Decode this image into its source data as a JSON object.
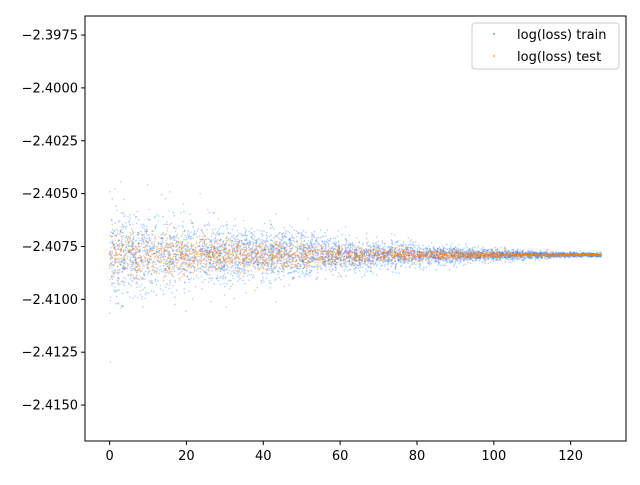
{
  "chart_data": {
    "type": "scatter",
    "title": "",
    "xlabel": "",
    "ylabel": "",
    "xlim": [
      -6.4,
      134.4
    ],
    "ylim": [
      -2.4167,
      -2.3966
    ],
    "xticks": [
      0,
      20,
      40,
      60,
      80,
      100,
      120
    ],
    "yticks": [
      -2.415,
      -2.4125,
      -2.41,
      -2.4075,
      -2.405,
      -2.4025,
      -2.4,
      -2.3975
    ],
    "ytick_labels": [
      "−2.4150",
      "−2.4125",
      "−2.4100",
      "−2.4075",
      "−2.4050",
      "−2.4025",
      "−2.4000",
      "−2.3975"
    ],
    "xtick_labels": [
      "0",
      "20",
      "40",
      "60",
      "80",
      "100",
      "120"
    ],
    "grid": false,
    "legend_position": "top-right",
    "series": [
      {
        "name": "log(loss) train",
        "color": "#1f77ff",
        "x_range": [
          0,
          128
        ],
        "center": -2.4079,
        "spread_start": 0.0011,
        "spread_end": 5e-05
      },
      {
        "name": "log(loss) test",
        "color": "#ff7f0e",
        "x_range": [
          0,
          128
        ],
        "center": -2.4079,
        "spread_start": 0.0006,
        "spread_end": 2e-05
      }
    ]
  }
}
